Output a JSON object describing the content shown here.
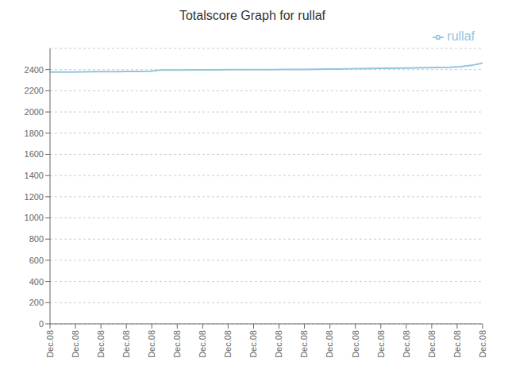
{
  "chart_data": {
    "type": "line",
    "title": "Totalscore Graph for rullaf",
    "x": [
      0,
      1,
      2,
      3,
      4,
      5,
      6,
      7,
      8,
      9,
      10,
      11,
      12,
      13,
      14,
      15,
      16,
      17,
      18,
      19,
      20,
      21,
      22,
      23,
      24,
      25,
      26,
      27,
      28,
      29,
      30,
      31,
      32,
      33,
      34,
      35,
      36,
      37,
      38,
      39
    ],
    "series": [
      {
        "name": "rullaf",
        "color": "#92c5de",
        "values": [
          2378,
          2378,
          2378,
          2379,
          2380,
          2380,
          2381,
          2382,
          2383,
          2384,
          2395,
          2396,
          2396,
          2397,
          2397,
          2398,
          2399,
          2400,
          2400,
          2400,
          2400,
          2401,
          2401,
          2402,
          2404,
          2405,
          2406,
          2408,
          2409,
          2410,
          2412,
          2413,
          2415,
          2416,
          2418,
          2420,
          2422,
          2428,
          2440,
          2462
        ]
      }
    ],
    "xlim": [
      0,
      39
    ],
    "xticks": [
      {
        "value": 0,
        "label": "Dec.08"
      },
      {
        "value": 2.2941176470588234,
        "label": "Dec.08"
      },
      {
        "value": 4.588235294117647,
        "label": "Dec.08"
      },
      {
        "value": 6.882352941176471,
        "label": "Dec.08"
      },
      {
        "value": 9.176470588235293,
        "label": "Dec.08"
      },
      {
        "value": 11.470588235294118,
        "label": "Dec.08"
      },
      {
        "value": 13.764705882352942,
        "label": "Dec.08"
      },
      {
        "value": 16.058823529411764,
        "label": "Dec.08"
      },
      {
        "value": 18.352941176470587,
        "label": "Dec.08"
      },
      {
        "value": 20.647058823529413,
        "label": "Dec.08"
      },
      {
        "value": 22.941176470588236,
        "label": "Dec.08"
      },
      {
        "value": 25.235294117647058,
        "label": "Dec.08"
      },
      {
        "value": 27.529411764705884,
        "label": "Dec.08"
      },
      {
        "value": 29.823529411764707,
        "label": "Dec.08"
      },
      {
        "value": 32.11764705882353,
        "label": "Dec.08"
      },
      {
        "value": 34.411764705882355,
        "label": "Dec.08"
      },
      {
        "value": 36.705882352941174,
        "label": "Dec.08"
      },
      {
        "value": 39,
        "label": "Dec.08"
      }
    ],
    "ylim": [
      0,
      2600
    ],
    "yticks": [
      0,
      200,
      400,
      600,
      800,
      1000,
      1200,
      1400,
      1600,
      1800,
      2000,
      2200,
      2400
    ],
    "grid": true,
    "legend": "top-right"
  }
}
